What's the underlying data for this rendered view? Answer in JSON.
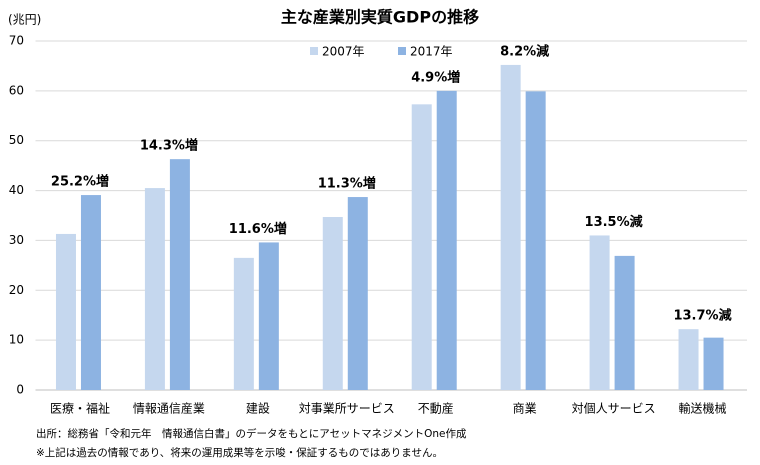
{
  "chart_data": {
    "type": "bar",
    "title": "主な産業別実質GDPの推移",
    "y_label": "(兆円)",
    "categories": [
      "医療・福祉",
      "情報通信産業",
      "建設",
      "対事業所サービス",
      "不動産",
      "商業",
      "対個人サービス",
      "輸送機械"
    ],
    "series": [
      {
        "name": "2007年",
        "color": "#c5d7ee",
        "values": [
          31.3,
          40.5,
          26.5,
          34.7,
          57.3,
          65.2,
          31.0,
          12.2
        ]
      },
      {
        "name": "2017年",
        "color": "#8db3e2",
        "values": [
          39.1,
          46.3,
          29.6,
          38.7,
          60.0,
          59.9,
          26.9,
          10.5
        ]
      }
    ],
    "annotations": [
      "25.2%増",
      "14.3%増",
      "11.6%増",
      "11.3%増",
      "4.9%増",
      "8.2%減",
      "13.5%減",
      "13.7%減"
    ],
    "ylim": [
      0,
      70
    ],
    "yticks": [
      0,
      10,
      20,
      30,
      40,
      50,
      60,
      70
    ],
    "grid": true,
    "legend": "top",
    "notes": [
      "出所：総務省「令和元年　情報通信白書」のデータをもとにアセットマネジメントOne作成",
      "※上記は過去の情報であり、将来の運用成果等を示唆・保証するものではありません。"
    ]
  }
}
